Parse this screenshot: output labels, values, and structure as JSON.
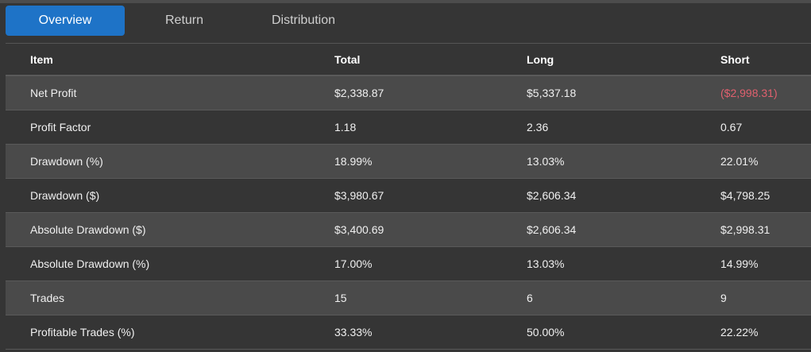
{
  "tabs": [
    {
      "label": "Overview",
      "active": true
    },
    {
      "label": "Return",
      "active": false
    },
    {
      "label": "Distribution",
      "active": false
    }
  ],
  "table": {
    "headers": [
      "Item",
      "Total",
      "Long",
      "Short"
    ],
    "rows": [
      [
        "Net Profit",
        "$2,338.87",
        "$5,337.18",
        "($2,998.31)"
      ],
      [
        "Profit Factor",
        "1.18",
        "2.36",
        "0.67"
      ],
      [
        "Drawdown (%)",
        "18.99%",
        "13.03%",
        "22.01%"
      ],
      [
        "Drawdown ($)",
        "$3,980.67",
        "$2,606.34",
        "$4,798.25"
      ],
      [
        "Absolute Drawdown ($)",
        "$3,400.69",
        "$2,606.34",
        "$2,998.31"
      ],
      [
        "Absolute Drawdown (%)",
        "17.00%",
        "13.03%",
        "14.99%"
      ],
      [
        "Trades",
        "15",
        "6",
        "9"
      ],
      [
        "Profitable Trades (%)",
        "33.33%",
        "50.00%",
        "22.22%"
      ]
    ]
  },
  "colors": {
    "active_tab": "#1e73c7",
    "negative_value": "#e0606e",
    "row_shade": "#4a4a4a",
    "background": "#353535"
  }
}
